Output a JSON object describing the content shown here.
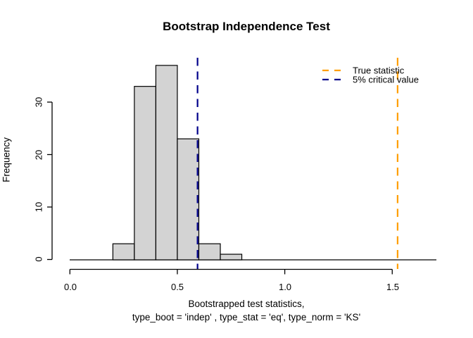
{
  "title": "Bootstrap Independence Test",
  "chart_data": {
    "type": "bar",
    "subtype": "histogram",
    "title": "Bootstrap Independence Test",
    "xlabel_line1": "Bootstrapped test statistics,",
    "xlabel_line2": "type_boot = 'indep' , type_stat = 'eq', type_norm = 'KS'",
    "ylabel": "Frequency",
    "bin_start": 0.2,
    "bin_width": 0.1,
    "bins": [
      "0.2-0.3",
      "0.3-0.4",
      "0.4-0.5",
      "0.5-0.6",
      "0.6-0.7",
      "0.7-0.8"
    ],
    "counts": [
      3,
      33,
      37,
      23,
      3,
      1
    ],
    "x_ticks": [
      0.0,
      0.5,
      1.0,
      1.5
    ],
    "x_tick_labels": [
      "0.0",
      "0.5",
      "1.0",
      "1.5"
    ],
    "y_ticks": [
      0,
      10,
      20,
      30
    ],
    "y_tick_labels": [
      "0",
      "10",
      "20",
      "30"
    ],
    "xlim": [
      0,
      1.5
    ],
    "ylim": [
      0,
      37
    ],
    "grid": false,
    "bar_fill": "#d3d3d3",
    "bar_stroke": "#000000",
    "vlines": [
      {
        "name": "true-statistic-line",
        "x": 1.525,
        "color": "#ff9e00",
        "label": "True statistic",
        "style": "dashed"
      },
      {
        "name": "critical-value-line",
        "x": 0.594,
        "color": "#00008b",
        "label": "5% critical value",
        "style": "dashed"
      }
    ],
    "legend": {
      "position": "topright",
      "items": [
        {
          "label": "True statistic",
          "color": "#ff9e00"
        },
        {
          "label": "5% critical value",
          "color": "#00008b"
        }
      ]
    }
  }
}
